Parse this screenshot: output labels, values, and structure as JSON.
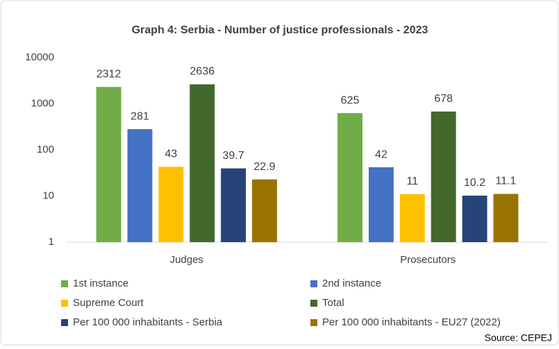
{
  "chart_data": {
    "type": "bar",
    "title": "Graph 4: Serbia - Number of justice professionals - 2023",
    "categories": [
      "Judges",
      "Prosecutors"
    ],
    "series": [
      {
        "name": "1st instance",
        "color": "#70ad47",
        "values": [
          2312,
          625
        ]
      },
      {
        "name": "2nd instance",
        "color": "#4472c4",
        "values": [
          281,
          42
        ]
      },
      {
        "name": "Supreme Court",
        "color": "#ffc000",
        "values": [
          43,
          11
        ]
      },
      {
        "name": "Total",
        "color": "#43682b",
        "values": [
          2636,
          678
        ]
      },
      {
        "name": "Per 100 000 inhabitants - Serbia",
        "color": "#264478",
        "values": [
          39.7,
          10.2
        ]
      },
      {
        "name": "Per 100 000 inhabitants - EU27 (2022)",
        "color": "#997300",
        "values": [
          22.9,
          11.1
        ]
      }
    ],
    "yscale": "log",
    "ylim": [
      1,
      10000
    ],
    "yticks": [
      1,
      10,
      100,
      1000,
      10000
    ],
    "grid": false,
    "legend": "bottom",
    "source": "Source: CEPEJ"
  }
}
